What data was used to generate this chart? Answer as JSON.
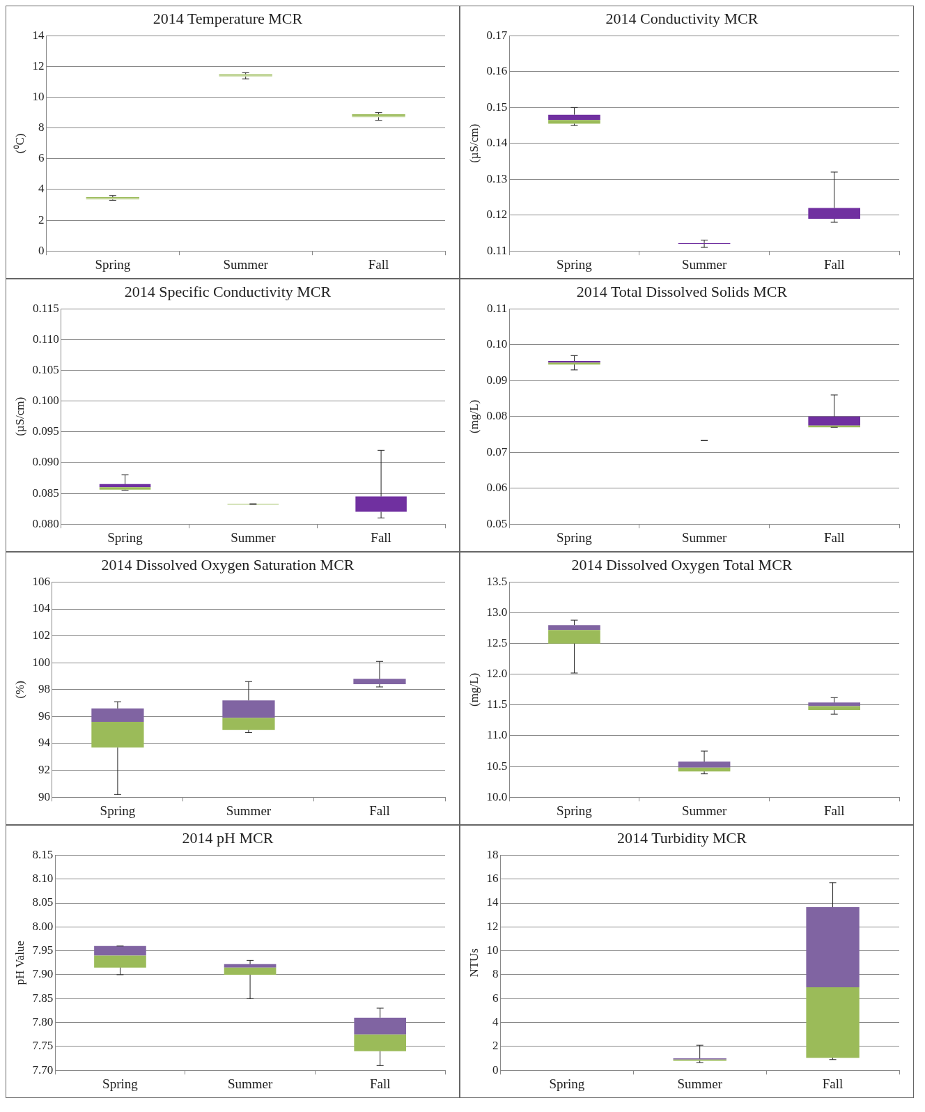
{
  "chart_data": [
    {
      "type": "box",
      "title": "2014 Temperature MCR",
      "ylabel": "(⁰C)",
      "categories": [
        "Spring",
        "Summer",
        "Fall"
      ],
      "color": "#9bbb59",
      "colors": [
        "#c3d69b",
        "#c3d69b",
        "#c3d69b"
      ],
      "grid": "y",
      "legend": false,
      "ylim": [
        0,
        14
      ],
      "yticks": [
        0,
        2,
        4,
        6,
        8,
        10,
        12,
        14
      ],
      "boxes": [
        {
          "low": 3.3,
          "q1": 3.35,
          "median": 3.45,
          "q3": 3.5,
          "high": 3.6
        },
        {
          "low": 11.2,
          "q1": 11.35,
          "median": 11.45,
          "q3": 11.5,
          "high": 11.6
        },
        {
          "low": 8.5,
          "q1": 8.7,
          "median": 8.8,
          "q3": 8.9,
          "high": 9.0
        }
      ]
    },
    {
      "type": "box",
      "title": "2014 Conductivity MCR",
      "ylabel": "(µS/cm)",
      "categories": [
        "Spring",
        "Summer",
        "Fall"
      ],
      "color": "#7030a0",
      "colors": [
        "#9bbb59",
        "#7030a0",
        "#7030a0"
      ],
      "grid": "y",
      "legend": false,
      "ylim": [
        0.11,
        0.17
      ],
      "yticks": [
        0.11,
        0.12,
        0.13,
        0.14,
        0.15,
        0.16,
        0.17
      ],
      "boxes": [
        {
          "low": 0.145,
          "q1": 0.1455,
          "median": 0.1465,
          "q3": 0.148,
          "high": 0.15
        },
        {
          "low": 0.111,
          "q1": 0.112,
          "median": 0.112,
          "q3": 0.1122,
          "high": 0.113
        },
        {
          "low": 0.118,
          "q1": 0.119,
          "median": 0.119,
          "q3": 0.122,
          "high": 0.132
        }
      ]
    },
    {
      "type": "box",
      "title": "2014 Specific Conductivity MCR",
      "ylabel": "(µS/cm)",
      "categories": [
        "Spring",
        "Summer",
        "Fall"
      ],
      "color": "#7030a0",
      "colors": [
        "#9bbb59",
        "#9bbb59",
        "#7030a0"
      ],
      "grid": "y",
      "legend": false,
      "ylim": [
        0.08,
        0.115
      ],
      "yticks": [
        {
          "value": 0.08,
          "label": "0.080"
        },
        {
          "value": 0.085,
          "label": "0.085"
        },
        {
          "value": 0.09,
          "label": "0.090"
        },
        {
          "value": 0.095,
          "label": "0.095"
        },
        {
          "value": 0.1,
          "label": "0.100"
        },
        {
          "value": 0.105,
          "label": "0.105"
        },
        {
          "value": 0.11,
          "label": "0.110"
        },
        {
          "value": 0.115,
          "label": "0.115"
        }
      ],
      "boxes": [
        {
          "low": 0.0855,
          "q1": 0.0856,
          "median": 0.086,
          "q3": 0.0865,
          "high": 0.088
        },
        {
          "low": 0.0832,
          "q1": 0.0832,
          "median": 0.0833,
          "q3": 0.0833,
          "high": 0.0833
        },
        {
          "low": 0.081,
          "q1": 0.082,
          "median": 0.082,
          "q3": 0.0845,
          "high": 0.092
        }
      ]
    },
    {
      "type": "box",
      "title": "2014 Total Dissolved Solids MCR",
      "ylabel": "(mg/L)",
      "categories": [
        "Spring",
        "Summer",
        "Fall"
      ],
      "color": "#7030a0",
      "colors": [
        "#9bbb59",
        "#222222",
        "#9bbb59"
      ],
      "grid": "y",
      "legend": false,
      "ylim": [
        0.05,
        0.11
      ],
      "yticks": [
        0.05,
        0.06,
        0.07,
        0.08,
        0.09,
        {
          "value": 0.1,
          "label": "0.10"
        },
        0.11
      ],
      "boxes": [
        {
          "low": 0.093,
          "q1": 0.0945,
          "median": 0.095,
          "q3": 0.0955,
          "high": 0.097
        },
        {
          "low": 0.0733,
          "q1": 0.0733,
          "median": 0.0733,
          "q3": 0.0733,
          "high": 0.0733
        },
        {
          "low": 0.077,
          "q1": 0.077,
          "median": 0.0775,
          "q3": 0.08,
          "high": 0.086
        }
      ]
    },
    {
      "type": "box",
      "title": "2014 Dissolved Oxygen Saturation MCR",
      "ylabel": "(%)",
      "categories": [
        "Spring",
        "Summer",
        "Fall"
      ],
      "color": "#8064a2",
      "colors": [
        "#9bbb59",
        "#9bbb59",
        "#8064a2"
      ],
      "grid": "y",
      "legend": false,
      "ylim": [
        90,
        106
      ],
      "yticks": [
        90,
        92,
        94,
        96,
        98,
        100,
        102,
        104,
        106
      ],
      "boxes": [
        {
          "low": 90.2,
          "q1": 93.7,
          "median": 95.6,
          "q3": 96.6,
          "high": 97.1
        },
        {
          "low": 94.8,
          "q1": 95.0,
          "median": 95.9,
          "q3": 97.2,
          "high": 98.6
        },
        {
          "low": 98.2,
          "q1": 98.4,
          "median": 98.4,
          "q3": 98.8,
          "high": 100.1
        }
      ]
    },
    {
      "type": "box",
      "title": "2014 Dissolved Oxygen Total MCR",
      "ylabel": "(mg/L)",
      "categories": [
        "Spring",
        "Summer",
        "Fall"
      ],
      "color": "#8064a2",
      "colors": [
        "#9bbb59",
        "#9bbb59",
        "#9bbb59"
      ],
      "grid": "y",
      "legend": false,
      "ylim": [
        10,
        13.5
      ],
      "yticks": [
        {
          "value": 10,
          "label": "10.0"
        },
        10.5,
        {
          "value": 11,
          "label": "11.0"
        },
        11.5,
        {
          "value": 12,
          "label": "12.0"
        },
        12.5,
        {
          "value": 13,
          "label": "13.0"
        },
        13.5
      ],
      "boxes": [
        {
          "low": 12.02,
          "q1": 12.5,
          "median": 12.72,
          "q3": 12.8,
          "high": 12.88
        },
        {
          "low": 10.38,
          "q1": 10.42,
          "median": 10.48,
          "q3": 10.58,
          "high": 10.75
        },
        {
          "low": 11.35,
          "q1": 11.42,
          "median": 11.48,
          "q3": 11.54,
          "high": 11.62
        }
      ]
    },
    {
      "type": "box",
      "title": "2014 pH MCR",
      "ylabel": "pH Value",
      "categories": [
        "Spring",
        "Summer",
        "Fall"
      ],
      "color": "#8064a2",
      "colors": [
        "#9bbb59",
        "#9bbb59",
        "#9bbb59"
      ],
      "grid": "y",
      "legend": false,
      "ylim": [
        7.7,
        8.15
      ],
      "yticks": [
        {
          "value": 7.7,
          "label": "7.70"
        },
        7.75,
        {
          "value": 7.8,
          "label": "7.80"
        },
        7.85,
        {
          "value": 7.9,
          "label": "7.90"
        },
        7.95,
        {
          "value": 8,
          "label": "8.00"
        },
        8.05,
        {
          "value": 8.1,
          "label": "8.10"
        },
        8.15
      ],
      "boxes": [
        {
          "low": 7.9,
          "q1": 7.915,
          "median": 7.94,
          "q3": 7.96,
          "high": 7.96
        },
        {
          "low": 7.85,
          "q1": 7.9,
          "median": 7.915,
          "q3": 7.922,
          "high": 7.93
        },
        {
          "low": 7.71,
          "q1": 7.74,
          "median": 7.775,
          "q3": 7.81,
          "high": 7.83
        }
      ]
    },
    {
      "type": "box",
      "title": "2014 Turbidity MCR",
      "ylabel": "NTUs",
      "categories": [
        "Spring",
        "Summer",
        "Fall"
      ],
      "color": "#8064a2",
      "colors": [
        "#9bbb59",
        "#9bbb59",
        "#9bbb59"
      ],
      "grid": "y",
      "legend": false,
      "ylim": [
        0,
        18
      ],
      "yticks": [
        0,
        2,
        4,
        6,
        8,
        10,
        12,
        14,
        16,
        18
      ],
      "boxes": [
        null,
        {
          "low": 0.65,
          "q1": 0.8,
          "median": 0.9,
          "q3": 1.0,
          "high": 2.1
        },
        {
          "low": 0.9,
          "q1": 1.05,
          "median": 6.95,
          "q3": 13.65,
          "high": 15.7
        }
      ]
    }
  ]
}
